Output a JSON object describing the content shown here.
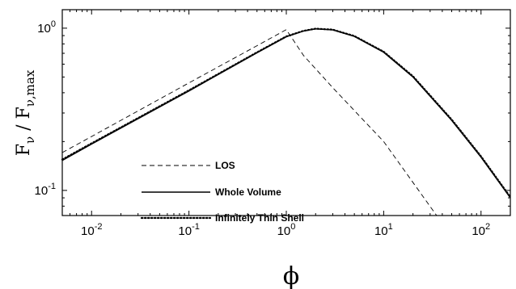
{
  "chart_data": {
    "type": "line",
    "xscale": "log",
    "yscale": "log",
    "xlim": [
      0.005,
      200
    ],
    "ylim": [
      0.07,
      1.3
    ],
    "xlabel": "ϕ",
    "ylabel": {
      "main": "F",
      "sub1": "ν",
      "sep": " / F",
      "sub2": "ν,max"
    },
    "x_ticks": [
      {
        "value": 0.01,
        "base": "10",
        "exp": "-2"
      },
      {
        "value": 0.1,
        "base": "10",
        "exp": "-1"
      },
      {
        "value": 1,
        "base": "10",
        "exp": "0"
      },
      {
        "value": 10,
        "base": "10",
        "exp": "1"
      },
      {
        "value": 100,
        "base": "10",
        "exp": "2"
      }
    ],
    "y_ticks": [
      {
        "value": 0.1,
        "base": "10",
        "exp": "-1"
      },
      {
        "value": 1,
        "base": "10",
        "exp": "0"
      }
    ],
    "legend": {
      "position": "center-left"
    },
    "series": [
      {
        "name": "LOS",
        "style": "dashed",
        "color": "#000000",
        "points": [
          [
            0.005,
            0.171
          ],
          [
            0.01,
            0.215
          ],
          [
            0.1,
            0.46
          ],
          [
            0.5,
            0.78
          ],
          [
            1.0,
            0.98
          ],
          [
            1.5,
            0.68
          ],
          [
            3,
            0.43
          ],
          [
            10,
            0.2
          ],
          [
            35,
            0.07
          ]
        ]
      },
      {
        "name": "Whole Volume",
        "style": "solid",
        "color": "#000000",
        "points": [
          [
            0.005,
            0.153
          ],
          [
            0.01,
            0.193
          ],
          [
            0.1,
            0.41
          ],
          [
            0.5,
            0.705
          ],
          [
            1.0,
            0.885
          ],
          [
            1.5,
            0.96
          ],
          [
            2.0,
            0.99
          ],
          [
            3,
            0.975
          ],
          [
            5,
            0.89
          ],
          [
            10,
            0.71
          ],
          [
            20,
            0.5
          ],
          [
            50,
            0.27
          ],
          [
            100,
            0.16
          ],
          [
            200,
            0.09
          ]
        ]
      },
      {
        "name": "Infinitely Thin Shell",
        "style": "dotted",
        "color": "#000000",
        "points": [
          [
            0.005,
            0.155
          ],
          [
            0.01,
            0.195
          ],
          [
            0.1,
            0.414
          ],
          [
            0.5,
            0.71
          ],
          [
            1.0,
            0.89
          ],
          [
            1.5,
            0.963
          ],
          [
            2.0,
            0.993
          ],
          [
            3,
            0.98
          ],
          [
            5,
            0.895
          ],
          [
            10,
            0.716
          ],
          [
            20,
            0.505
          ],
          [
            50,
            0.273
          ],
          [
            100,
            0.162
          ],
          [
            200,
            0.091
          ]
        ]
      }
    ]
  }
}
